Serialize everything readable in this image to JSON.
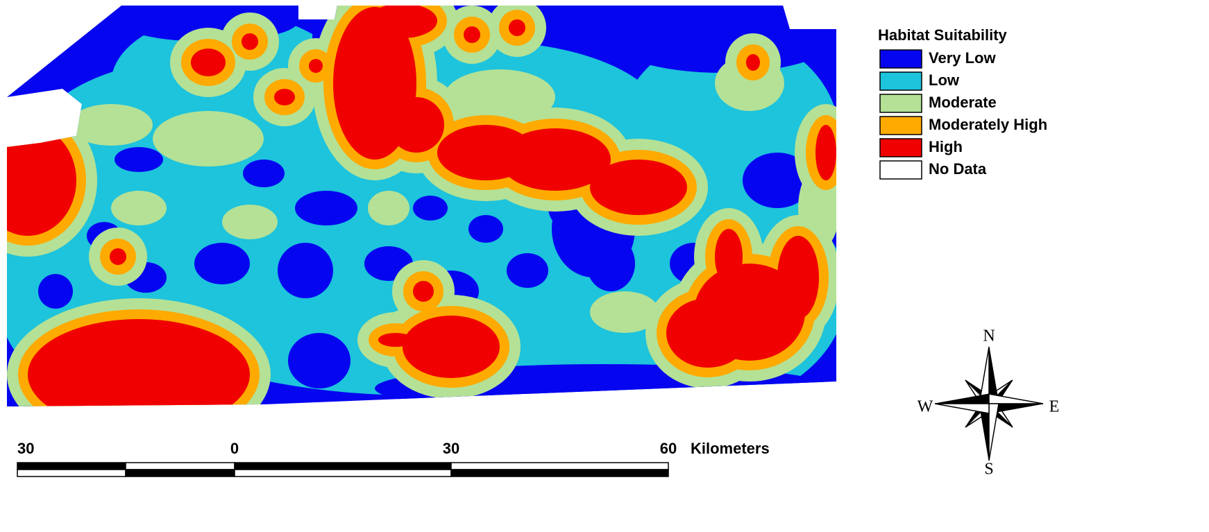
{
  "legend": {
    "title": "Habitat Suitability",
    "items": [
      {
        "label": "Very Low",
        "color": "#0505f0"
      },
      {
        "label": "Low",
        "color": "#1ec3dc"
      },
      {
        "label": "Moderate",
        "color": "#b4e196"
      },
      {
        "label": "Moderately High",
        "color": "#ffaa00"
      },
      {
        "label": "High",
        "color": "#f00000"
      },
      {
        "label": "No Data",
        "color": "#ffffff"
      }
    ]
  },
  "scale_bar": {
    "labels": [
      "30",
      "0",
      "30",
      "60"
    ],
    "unit": "Kilometers"
  },
  "compass": {
    "n": "N",
    "s": "S",
    "e": "E",
    "w": "W"
  }
}
